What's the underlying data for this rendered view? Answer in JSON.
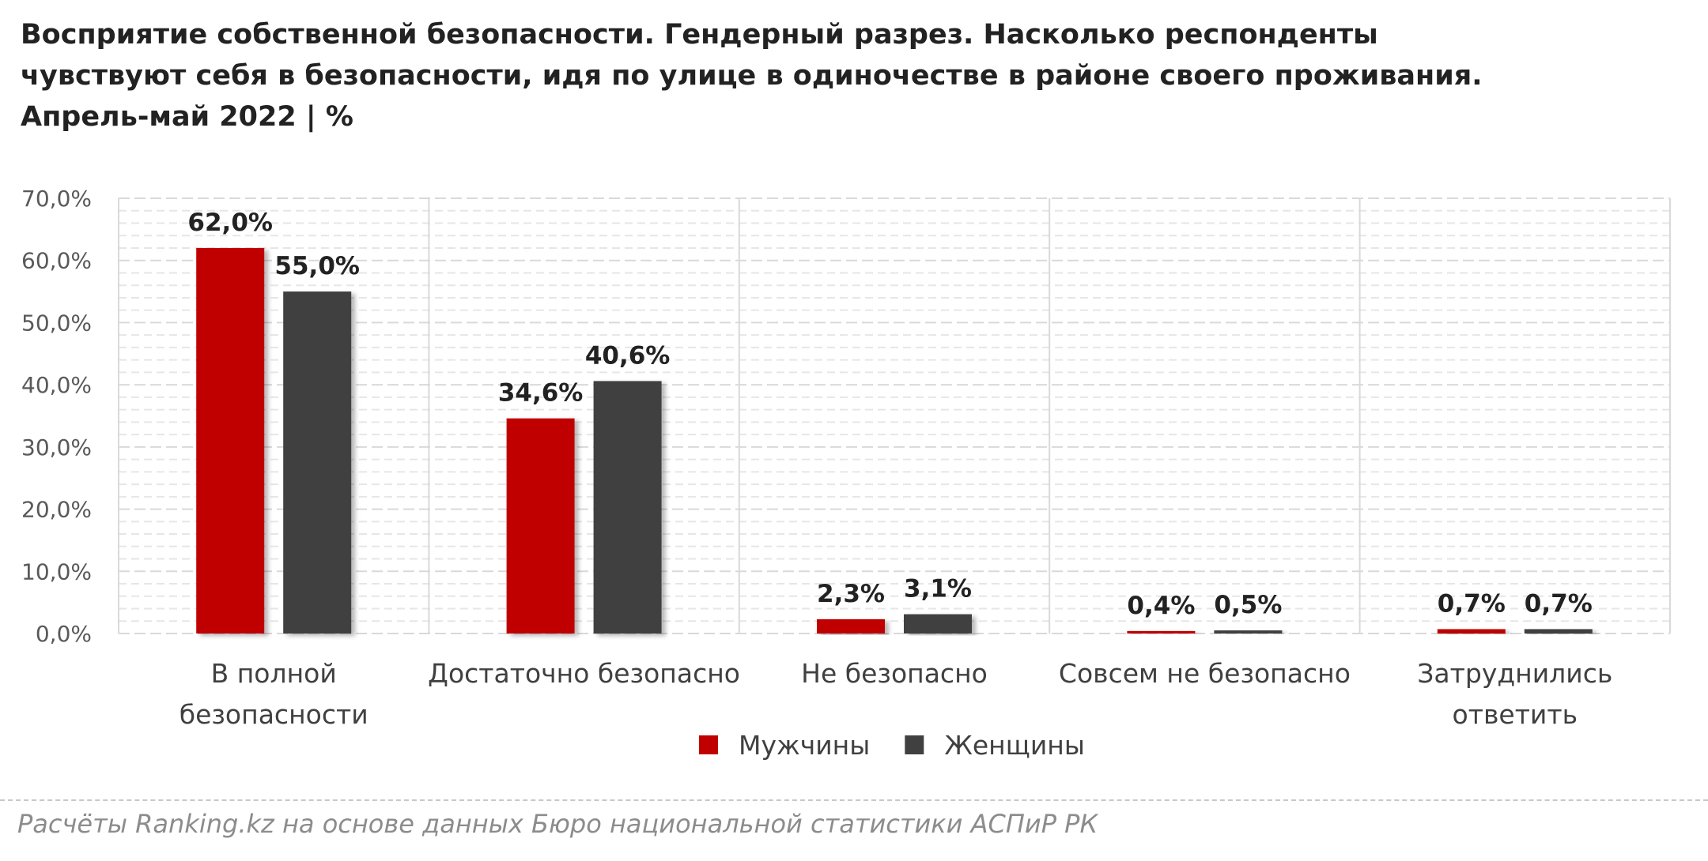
{
  "title_lines": [
    "Восприятие собственной безопасности. Гендерный разрез. Насколько респонденты",
    "чувствуют себя в безопасности, идя по улице в одиночестве в районе своего проживания.",
    "Апрель-май 2022 | %"
  ],
  "source": "Расчёты Ranking.kz на основе данных Бюро национальной статистики АСПиР РК",
  "chart_data": {
    "type": "bar",
    "categories": [
      [
        "В полной",
        "безопасности"
      ],
      [
        "Достаточно безопасно"
      ],
      [
        "Не безопасно"
      ],
      [
        "Совсем не безопасно"
      ],
      [
        "Затруднились",
        "ответить"
      ]
    ],
    "series": [
      {
        "name": "Мужчины",
        "color": "#c00000",
        "values": [
          62.0,
          34.6,
          2.3,
          0.4,
          0.7
        ],
        "labels": [
          "62,0%",
          "34,6%",
          "2,3%",
          "0,4%",
          "0,7%"
        ]
      },
      {
        "name": "Женщины",
        "color": "#404040",
        "values": [
          55.0,
          40.6,
          3.1,
          0.5,
          0.7
        ],
        "labels": [
          "55,0%",
          "40,6%",
          "3,1%",
          "0,5%",
          "0,7%"
        ]
      }
    ],
    "ylim": [
      0,
      70
    ],
    "yticks": [
      0,
      10,
      20,
      30,
      40,
      50,
      60,
      70
    ],
    "ytick_labels": [
      "0,0%",
      "10,0%",
      "20,0%",
      "30,0%",
      "40,0%",
      "50,0%",
      "60,0%",
      "70,0%"
    ],
    "grid": true,
    "legend_position": "bottom"
  }
}
